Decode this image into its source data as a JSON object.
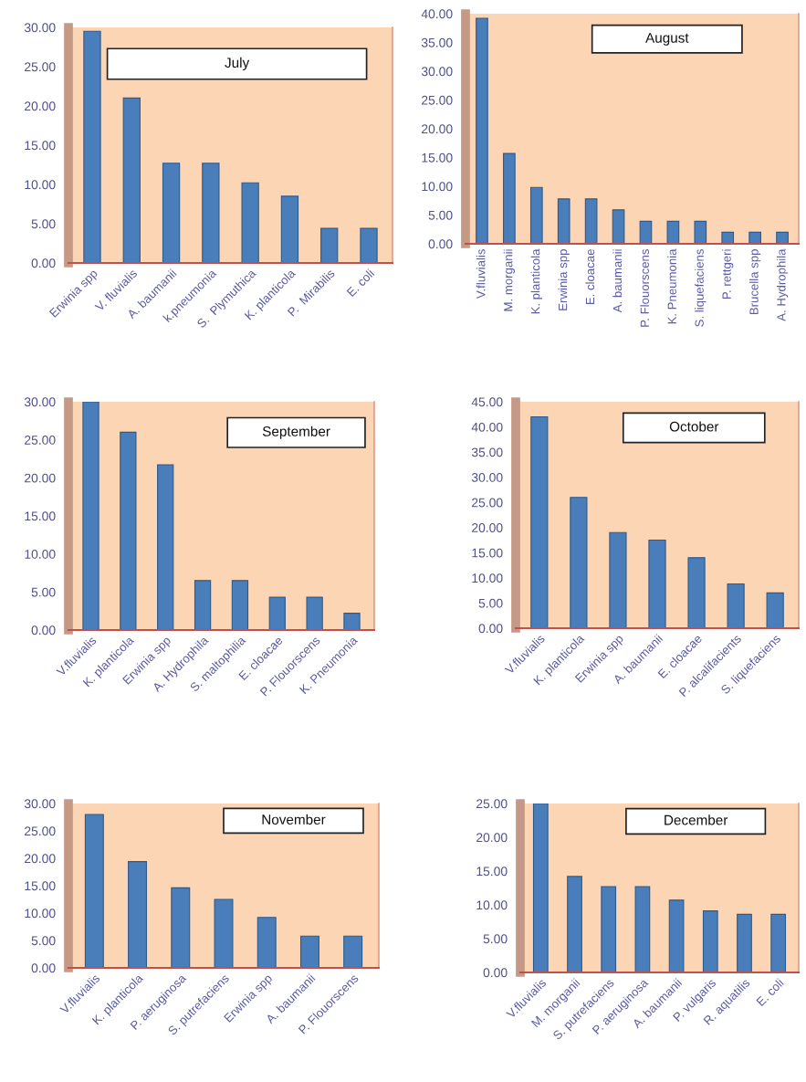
{
  "chart_data": [
    {
      "type": "bar",
      "title": "July",
      "categories": [
        "Erwinia spp",
        "V. fluvialis",
        "A. baumanii",
        "k.pneumonia",
        "S.  Plymuthica",
        "K. planticola",
        "P.  Mirabilis",
        "E. coli"
      ],
      "values": [
        29.5,
        21,
        12.7,
        12.7,
        10.2,
        8.5,
        4.4,
        4.4
      ],
      "color": "#4a7ebb",
      "ylim": [
        0,
        30
      ],
      "yticks": [
        {
          "value": 0,
          "label": "0.00"
        },
        {
          "value": 5,
          "label": "5.00"
        },
        {
          "value": 10,
          "label": "10.00"
        },
        {
          "value": 15,
          "label": "15.00"
        },
        {
          "value": 20,
          "label": "20.00"
        },
        {
          "value": 25,
          "label": "25.00"
        },
        {
          "value": 30,
          "label": "30.00"
        }
      ]
    },
    {
      "type": "bar",
      "title": "August",
      "categories": [
        "V.fluvialis",
        "M. morganii",
        "K. planticola",
        "Erwinia spp",
        "E. cloacae",
        "A. baumanii",
        "P. Flouorscens",
        "K. Pneumonia",
        "S. liquefaciens",
        "P. rettgeri",
        "Brucella spp",
        "A. Hydrophila"
      ],
      "values": [
        39.2,
        15.7,
        9.8,
        7.8,
        7.8,
        5.9,
        3.9,
        3.9,
        3.9,
        2,
        2,
        2
      ],
      "color": "#4a7ebb",
      "ylim": [
        0,
        40
      ],
      "yticks": [
        {
          "value": 0,
          "label": "0.00"
        },
        {
          "value": 5,
          "label": "5.00"
        },
        {
          "value": 10,
          "label": "10.00"
        },
        {
          "value": 15,
          "label": "15.00"
        },
        {
          "value": 20,
          "label": "20.00"
        },
        {
          "value": 25,
          "label": "25.00"
        },
        {
          "value": 30,
          "label": "30.00"
        },
        {
          "value": 35,
          "label": "35.00"
        },
        {
          "value": 40,
          "label": "40.00"
        }
      ]
    },
    {
      "type": "bar",
      "title": "September",
      "categories": [
        "V.fluvialis",
        "K. planticola",
        "Erwinia spp",
        "A. Hydrophila",
        "S. maltophilia",
        "E. cloacae",
        "P. Flouorscens",
        "K. Pneumonia"
      ],
      "values": [
        30,
        26,
        21.7,
        6.5,
        6.5,
        4.3,
        4.3,
        2.2
      ],
      "color": "#4a7ebb",
      "ylim": [
        0,
        30
      ],
      "yticks": [
        {
          "value": 0,
          "label": "0.00"
        },
        {
          "value": 5,
          "label": "5.00"
        },
        {
          "value": 10,
          "label": "10.00"
        },
        {
          "value": 15,
          "label": "15.00"
        },
        {
          "value": 20,
          "label": "20.00"
        },
        {
          "value": 25,
          "label": "25.00"
        },
        {
          "value": 30,
          "label": "30.00"
        }
      ]
    },
    {
      "type": "bar",
      "title": "October",
      "categories": [
        "V.fluvialis",
        "K. planticola",
        "Erwinia spp",
        "A. baumanii",
        "E. cloacae",
        "P. alcalifacients",
        "S. liquefaciens"
      ],
      "values": [
        42,
        26,
        19,
        17.5,
        14,
        8.8,
        7
      ],
      "color": "#4a7ebb",
      "ylim": [
        0,
        45
      ],
      "yticks": [
        {
          "value": 0,
          "label": "0.00"
        },
        {
          "value": 5,
          "label": "5.00"
        },
        {
          "value": 10,
          "label": "10.00"
        },
        {
          "value": 15,
          "label": "15.00"
        },
        {
          "value": 20,
          "label": "20.00"
        },
        {
          "value": 25,
          "label": "25.00"
        },
        {
          "value": 30,
          "label": "30.00"
        },
        {
          "value": 35,
          "label": "35.00"
        },
        {
          "value": 40,
          "label": "40.00"
        },
        {
          "value": 45,
          "label": "45.00"
        }
      ]
    },
    {
      "type": "bar",
      "title": "November",
      "categories": [
        "V.fluvialis",
        "K. planticola",
        "P. aeruginosa",
        "S. putrefaciens",
        "Erwinia spp",
        "A. baumanii",
        "P. Flouorscens"
      ],
      "values": [
        28,
        19.4,
        14.6,
        12.5,
        9.2,
        5.8,
        5.8
      ],
      "color": "#4a7ebb",
      "ylim": [
        0,
        30
      ],
      "yticks": [
        {
          "value": 0,
          "label": "0.00"
        },
        {
          "value": 5,
          "label": "5.00"
        },
        {
          "value": 10,
          "label": "10.00"
        },
        {
          "value": 15,
          "label": "15.00"
        },
        {
          "value": 20,
          "label": "20.00"
        },
        {
          "value": 25,
          "label": "25.00"
        },
        {
          "value": 30,
          "label": "30.00"
        }
      ]
    },
    {
      "type": "bar",
      "title": "December",
      "categories": [
        "V.fluvialis",
        "M. morganii",
        "S. putrefaciens",
        "P. aeruginosa",
        "A. baumanii",
        "P. vulgaris",
        "R. aquatilis",
        "E. coli"
      ],
      "values": [
        25,
        14.2,
        12.7,
        12.7,
        10.7,
        9.1,
        8.6,
        8.6
      ],
      "color": "#4a7ebb",
      "ylim": [
        0,
        25
      ],
      "yticks": [
        {
          "value": 0,
          "label": "0.00"
        },
        {
          "value": 5,
          "label": "5.00"
        },
        {
          "value": 10,
          "label": "10.00"
        },
        {
          "value": 15,
          "label": "15.00"
        },
        {
          "value": 20,
          "label": "20.00"
        },
        {
          "value": 25,
          "label": "25.00"
        }
      ]
    }
  ]
}
